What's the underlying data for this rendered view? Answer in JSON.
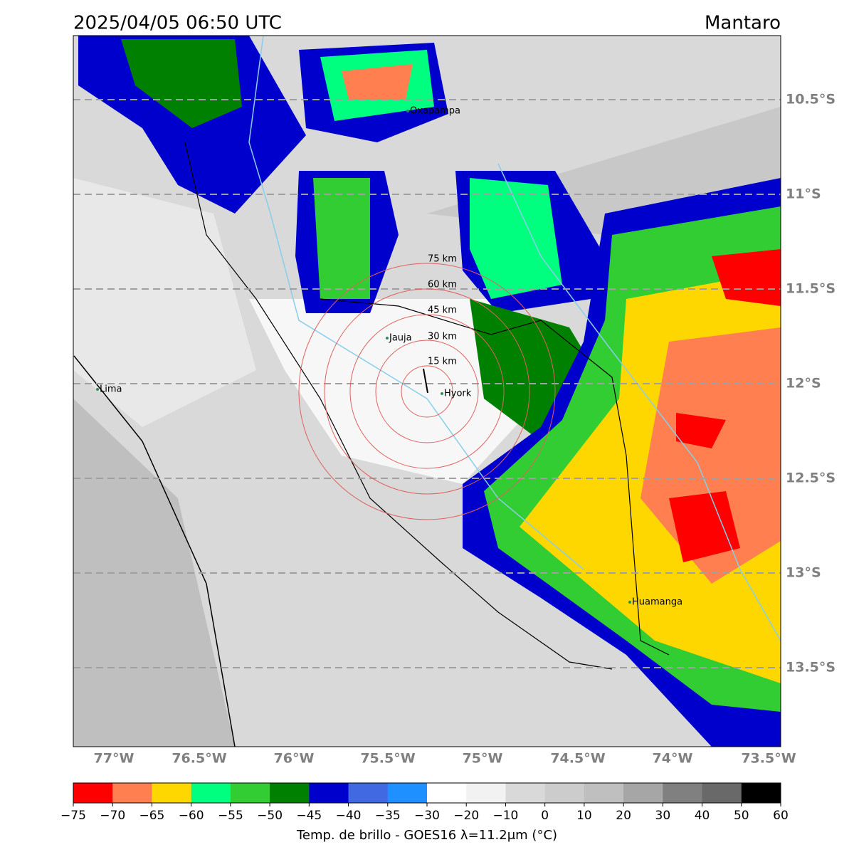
{
  "header": {
    "title": "2025/04/05 06:50 UTC",
    "region": "Mantaro"
  },
  "map": {
    "lat_labels": [
      "10.5°S",
      "11°S",
      "11.5°S",
      "12°S",
      "12.5°S",
      "13°S",
      "13.5°S"
    ],
    "lon_labels": [
      "77°W",
      "76.5°W",
      "76°W",
      "75.5°W",
      "75°W",
      "74.5°W",
      "74°W",
      "73.5°W"
    ],
    "ring_labels": [
      "15 km",
      "30 km",
      "45 km",
      "60 km",
      "75 km"
    ],
    "places": [
      "Oxapampa",
      "Jauja",
      "Hyork",
      "Lima",
      "Huamanga"
    ]
  },
  "colorbar": {
    "label": "Temp. de brillo - GOES16 λ=11.2μm (°C)",
    "ticks": [
      "−75",
      "−70",
      "−65",
      "−60",
      "−55",
      "−50",
      "−45",
      "−40",
      "−35",
      "−30",
      "−20",
      "−10",
      "0",
      "10",
      "20",
      "30",
      "40",
      "50",
      "60"
    ],
    "colors": [
      "#ff0000",
      "#ff7f50",
      "#ffd700",
      "#00ff7f",
      "#32cd32",
      "#008000",
      "#0000cd",
      "#4169e1",
      "#1e90ff",
      "#ffffff",
      "#f2f2f2",
      "#d9d9d9",
      "#cccccc",
      "#bfbfbf",
      "#a6a6a6",
      "#808080",
      "#696969",
      "#000000"
    ]
  }
}
